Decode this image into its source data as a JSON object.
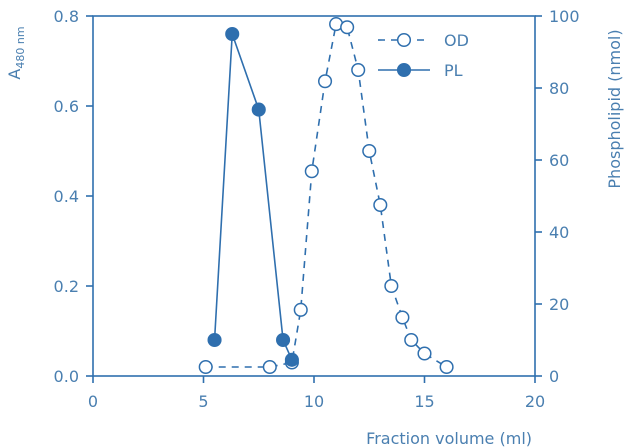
{
  "chart_data": {
    "type": "line",
    "xlabel": "Fraction volume (ml)",
    "ylabel_left_main": "A",
    "ylabel_left_sub": "480 nm",
    "ylabel_right": "Phospholipid (nmol)",
    "xlim": [
      0,
      20
    ],
    "ylim_left": [
      0,
      0.8
    ],
    "ylim_right": [
      0,
      100
    ],
    "x_ticks": [
      "0",
      "5",
      "10",
      "15",
      "20"
    ],
    "y_left_ticks": [
      "0.0",
      "0.2",
      "0.4",
      "0.6",
      "0.8"
    ],
    "y_right_ticks": [
      "0",
      "20",
      "40",
      "60",
      "80",
      "100"
    ],
    "grid": false,
    "legend_placement": "top-right",
    "color": "#2f6fae",
    "series": [
      {
        "name": "OD",
        "axis": "left",
        "style": "dashed-open-circle",
        "x": [
          5.1,
          8.0,
          9.0,
          9.4,
          9.9,
          10.5,
          11.0,
          11.5,
          12.0,
          12.5,
          13.0,
          13.5,
          14.0,
          14.4,
          15.0,
          16.0
        ],
        "y": [
          0.02,
          0.02,
          0.03,
          0.147,
          0.455,
          0.655,
          0.782,
          0.775,
          0.68,
          0.5,
          0.38,
          0.2,
          0.13,
          0.08,
          0.05,
          0.02
        ]
      },
      {
        "name": "PL",
        "axis": "right",
        "style": "solid-filled-circle",
        "x": [
          5.5,
          6.3,
          7.5,
          8.6,
          9.0
        ],
        "y": [
          10,
          95,
          74,
          10,
          4.5
        ]
      }
    ]
  }
}
